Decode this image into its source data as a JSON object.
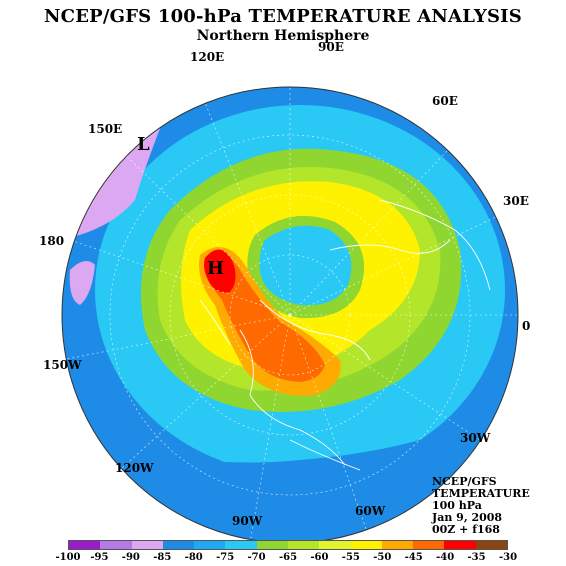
{
  "title": "NCEP/GFS 100-hPa TEMPERATURE ANALYSIS",
  "subtitle": "Northern Hemisphere",
  "longitude_labels": [
    "120E",
    "90E",
    "60E",
    "150E",
    "30E",
    "180",
    "0",
    "150W",
    "30W",
    "120W",
    "90W",
    "60W"
  ],
  "highs_lows": {
    "low": "L",
    "high": "H"
  },
  "info_box": [
    "NCEP/GFS",
    "TEMPERATURE",
    "100 hPa",
    "Jan 9, 2008",
    "00Z + f168"
  ],
  "legend": {
    "labels": [
      "-100",
      "-95",
      "-90",
      "-85",
      "-80",
      "-75",
      "-70",
      "-65",
      "-60",
      "-55",
      "-50",
      "-45",
      "-40",
      "-35",
      "-30"
    ],
    "colors": [
      "#9a1ccc",
      "#b47ae6",
      "#dca8f2",
      "#1e8ce6",
      "#1eaaf2",
      "#29c8f5",
      "#8fd631",
      "#b3e62a",
      "#e1f52c",
      "#fff200",
      "#ffaa00",
      "#ff6a00",
      "#ff0000",
      "#8b4513"
    ]
  },
  "map_colors": {
    "ocean_outer": "#1e8ce6",
    "cold_core": "#29c8f5",
    "very_cold": "#dca8f2",
    "green": "#8fd631",
    "yellowgreen": "#b3e62a",
    "yellow": "#fff200",
    "lightyellow": "#e1f52c",
    "orange": "#ffaa00",
    "darkorange": "#ff6a00",
    "red": "#ff0000",
    "land_outline": "#ffffff"
  }
}
